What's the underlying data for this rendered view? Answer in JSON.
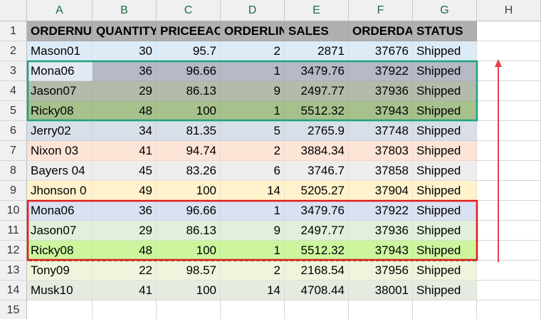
{
  "columns": [
    "A",
    "B",
    "C",
    "D",
    "E",
    "F",
    "G",
    "H"
  ],
  "row_numbers": [
    1,
    2,
    3,
    4,
    5,
    6,
    7,
    8,
    9,
    10,
    11,
    12,
    13,
    14,
    15
  ],
  "rows": [
    [
      "ORDERNU",
      "QUANTITY",
      "PRICEEAC",
      "ORDERLIN",
      "SALES",
      "ORDERDA",
      "STATUS"
    ],
    [
      "Mason01",
      30,
      95.7,
      2,
      2871,
      37676,
      "Shipped"
    ],
    [
      "Mona06",
      36,
      96.66,
      1,
      3479.76,
      37922,
      "Shipped"
    ],
    [
      "Jason07",
      29,
      86.13,
      9,
      2497.77,
      37936,
      "Shipped"
    ],
    [
      "Ricky08",
      48,
      100,
      1,
      5512.32,
      37943,
      "Shipped"
    ],
    [
      "Jerry02",
      34,
      81.35,
      5,
      2765.9,
      37748,
      "Shipped"
    ],
    [
      "Nixon 03",
      41,
      94.74,
      2,
      3884.34,
      37803,
      "Shipped"
    ],
    [
      "Bayers 04",
      45,
      83.26,
      6,
      3746.7,
      37858,
      "Shipped"
    ],
    [
      "Jhonson 0",
      49,
      100,
      14,
      5205.27,
      37904,
      "Shipped"
    ],
    [
      "Mona06",
      36,
      96.66,
      1,
      3479.76,
      37922,
      "Shipped"
    ],
    [
      "Jason07",
      29,
      86.13,
      9,
      2497.77,
      37936,
      "Shipped"
    ],
    [
      "Ricky08",
      48,
      100,
      1,
      5512.32,
      37943,
      "Shipped"
    ],
    [
      "Tony09",
      22,
      98.57,
      2,
      2168.54,
      37956,
      "Shipped"
    ],
    [
      "Musk10",
      41,
      100,
      14,
      4708.44,
      38001,
      "Shipped"
    ]
  ]
}
